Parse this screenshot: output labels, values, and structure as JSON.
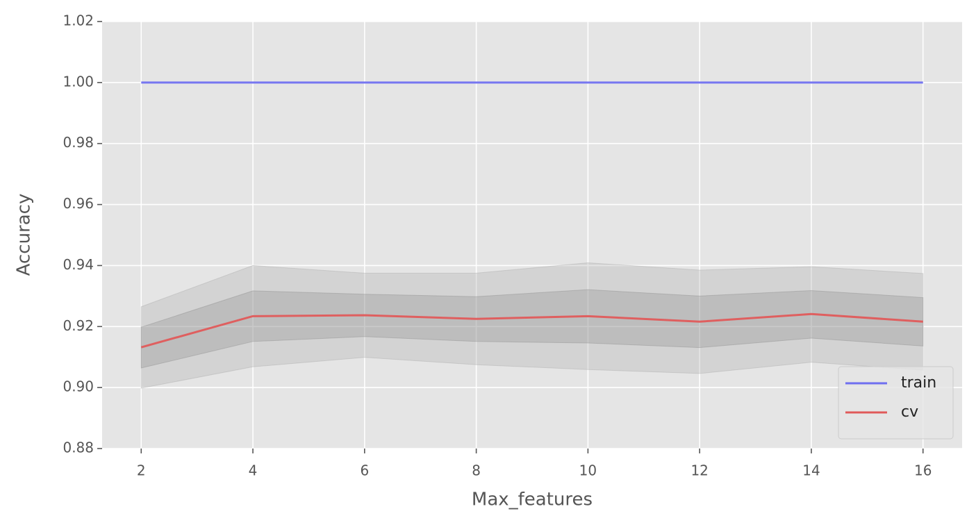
{
  "chart_data": {
    "type": "line",
    "xlabel": "Max_features",
    "ylabel": "Accuracy",
    "x": [
      2,
      4,
      6,
      8,
      10,
      12,
      14,
      16
    ],
    "series": [
      {
        "name": "train",
        "color": "#6f6ff0",
        "values": [
          1.0,
          1.0,
          1.0,
          1.0,
          1.0,
          1.0,
          1.0,
          1.0
        ]
      },
      {
        "name": "cv",
        "color": "#e05a5a",
        "values": [
          0.9132,
          0.9234,
          0.9237,
          0.9225,
          0.9234,
          0.9216,
          0.9241,
          0.9216
        ]
      }
    ],
    "bands": [
      {
        "color": "#a8a8a8",
        "upper": [
          0.9265,
          0.94,
          0.9375,
          0.9375,
          0.9409,
          0.9385,
          0.9396,
          0.9374
        ],
        "lower": [
          0.8998,
          0.9068,
          0.9099,
          0.9075,
          0.9059,
          0.9046,
          0.9083,
          0.9057
        ]
      },
      {
        "color": "#8a8a8a",
        "upper": [
          0.9198,
          0.9317,
          0.9306,
          0.9298,
          0.9321,
          0.93,
          0.9318,
          0.9295
        ],
        "lower": [
          0.9064,
          0.9151,
          0.9167,
          0.9151,
          0.9146,
          0.9131,
          0.9162,
          0.9136
        ]
      }
    ],
    "xlim": [
      1.3,
      16.7
    ],
    "ylim": [
      0.88,
      1.02
    ],
    "xticks": [
      2,
      4,
      6,
      8,
      10,
      12,
      14,
      16
    ],
    "yticks": [
      0.88,
      {
        "value": 0.9,
        "label": "0.90"
      },
      0.92,
      0.94,
      0.96,
      0.98,
      {
        "value": 1.0,
        "label": "1.00"
      },
      1.02
    ],
    "grid": true,
    "legend": "lower right"
  }
}
